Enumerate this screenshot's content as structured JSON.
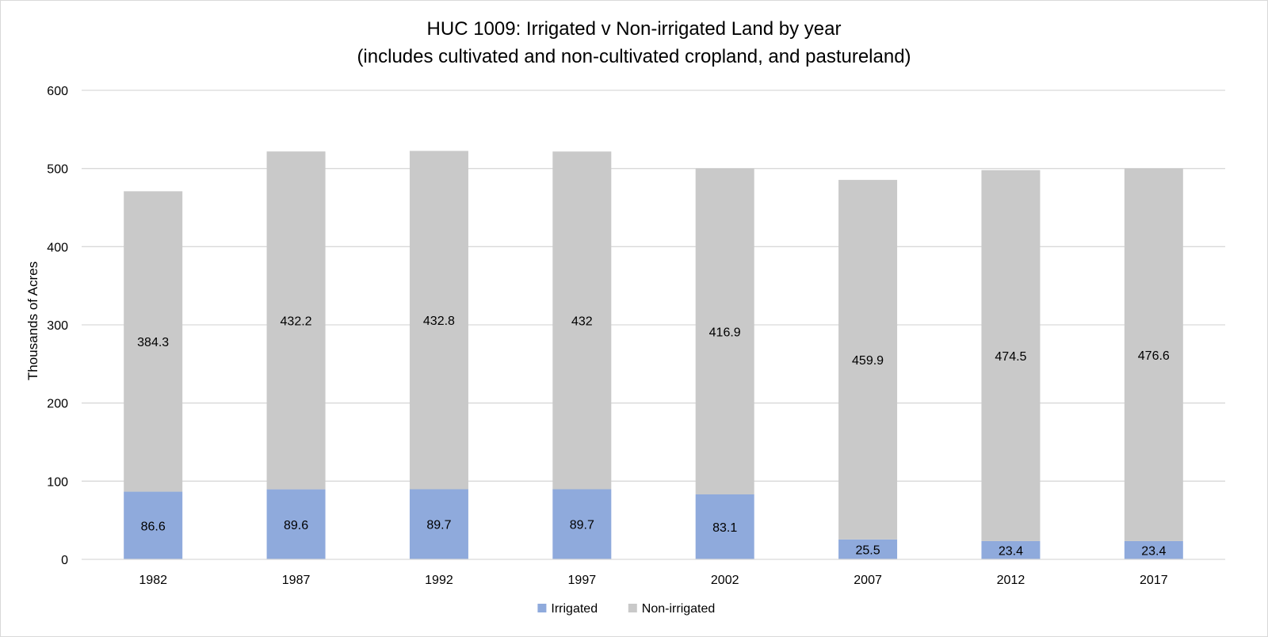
{
  "chart_data": {
    "type": "bar",
    "stacked": true,
    "title": "HUC 1009: Irrigated v Non-irrigated Land by year",
    "subtitle": "(includes cultivated and non-cultivated cropland, and pastureland)",
    "xlabel": "",
    "ylabel": "Thousands of Acres",
    "ylim": [
      0,
      600
    ],
    "yticks": [
      0,
      100,
      200,
      300,
      400,
      500,
      600
    ],
    "grid": true,
    "legend_position": "bottom",
    "categories": [
      "1982",
      "1987",
      "1992",
      "1997",
      "2002",
      "2007",
      "2012",
      "2017"
    ],
    "series": [
      {
        "name": "Irrigated",
        "color": "#8faadc",
        "values": [
          86.6,
          89.6,
          89.7,
          89.7,
          83.1,
          25.5,
          23.4,
          23.4
        ]
      },
      {
        "name": "Non-irrigated",
        "color": "#c9c9c9",
        "values": [
          384.3,
          432.2,
          432.8,
          432,
          416.9,
          459.9,
          474.5,
          476.6
        ]
      }
    ]
  }
}
